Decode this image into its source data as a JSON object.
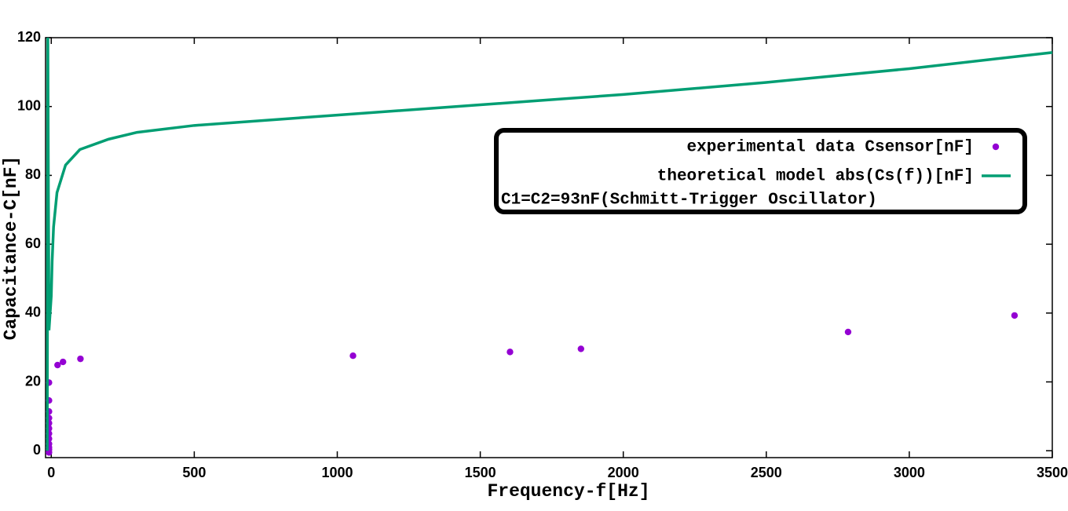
{
  "chart_data": {
    "type": "scatter",
    "xlabel": "Frequency-f[Hz]",
    "ylabel": "Capacitance-C[nF]",
    "xlim": [
      -20,
      3500
    ],
    "ylim": [
      -2,
      120
    ],
    "xticks": [
      0,
      500,
      1000,
      1500,
      2000,
      2500,
      3000,
      3500
    ],
    "yticks": [
      0,
      20,
      40,
      60,
      80,
      100,
      120
    ],
    "legend_title": "C1=C2=93nF(Schmitt-Trigger Oscillator)",
    "legend_position": "upper right",
    "series": [
      {
        "name": "experimental data Csensor[nF]",
        "color": "#9400d3",
        "kind": "points",
        "x": [
          -8,
          -8,
          -8,
          -8,
          -8,
          -8,
          -8,
          -8,
          -8,
          -8,
          -8,
          -8,
          22,
          41,
          102,
          1055,
          1604,
          1852,
          2786,
          3368
        ],
        "values": [
          19.8,
          14.6,
          11.4,
          9.5,
          8,
          6.5,
          5,
          3.5,
          2,
          1,
          0.3,
          -0.5,
          24.9,
          25.8,
          26.7,
          27.6,
          28.7,
          29.6,
          34.5,
          39.3
        ]
      },
      {
        "name": "theoretical model abs(Cs(f))[nF]",
        "color": "#009e73",
        "kind": "line",
        "x": [
          -14,
          -12,
          -10,
          -8,
          0,
          3,
          8,
          20,
          50,
          100,
          200,
          300,
          500,
          1000,
          1500,
          2000,
          2500,
          3000,
          3500
        ],
        "values": [
          0,
          120,
          75,
          35,
          45,
          55,
          65,
          75,
          83,
          87.5,
          90.5,
          92.5,
          94.5,
          97.5,
          100.5,
          103.5,
          107,
          111,
          115.7
        ]
      }
    ]
  }
}
